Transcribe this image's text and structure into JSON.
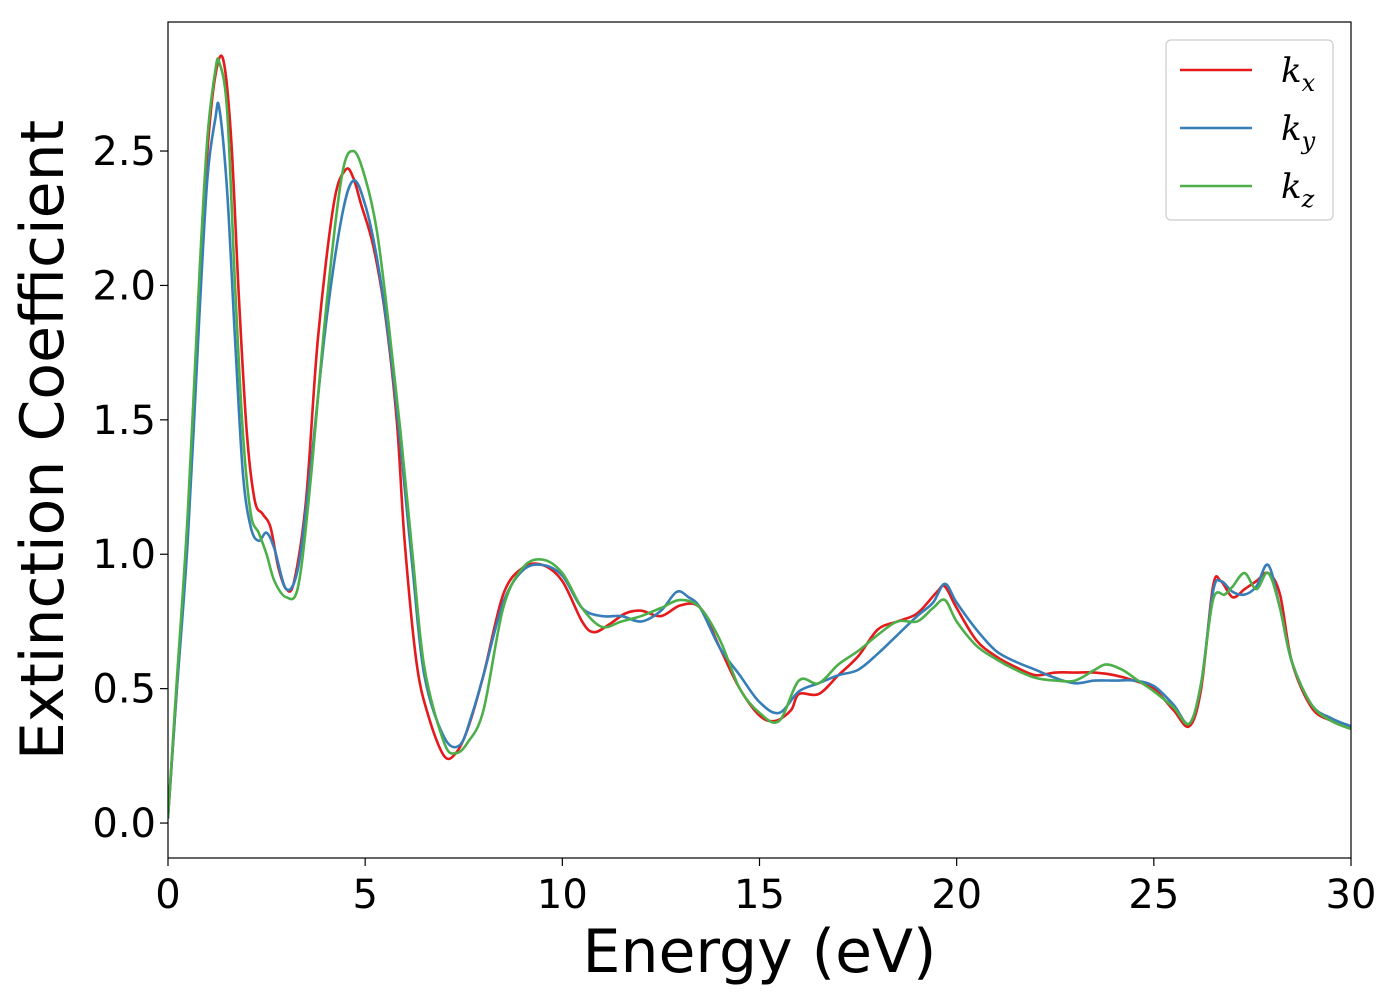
{
  "chart_data": {
    "type": "line",
    "xlabel": "Energy (eV)",
    "ylabel": "Extinction Coefficient",
    "xlim": [
      0,
      30
    ],
    "ylim": [
      -0.13,
      2.98
    ],
    "xticks": [
      0,
      5,
      10,
      15,
      20,
      25,
      30
    ],
    "xtick_labels": [
      "0",
      "5",
      "10",
      "15",
      "20",
      "25",
      "30"
    ],
    "yticks": [
      0.0,
      0.5,
      1.0,
      1.5,
      2.0,
      2.5
    ],
    "ytick_labels": [
      "0.0",
      "0.5",
      "1.0",
      "1.5",
      "2.0",
      "2.5"
    ],
    "grid": false,
    "legend_position": "top-right",
    "series": [
      {
        "name": "k_x",
        "label_base": "k",
        "label_sub": "x",
        "color": "#e41a1c",
        "x": [
          0,
          0.2,
          0.5,
          0.8,
          1.0,
          1.2,
          1.4,
          1.6,
          1.8,
          2.0,
          2.2,
          2.4,
          2.6,
          2.8,
          3.0,
          3.2,
          3.5,
          3.8,
          4.2,
          4.5,
          4.7,
          4.9,
          5.2,
          5.5,
          5.8,
          6.0,
          6.3,
          6.6,
          7.0,
          7.3,
          7.6,
          8.0,
          8.5,
          9.0,
          9.5,
          10.0,
          10.5,
          10.8,
          11.2,
          11.6,
          12.0,
          12.5,
          13.0,
          13.5,
          14.0,
          14.5,
          15.0,
          15.4,
          15.8,
          16.0,
          16.5,
          17.0,
          17.5,
          18.0,
          18.5,
          19.0,
          19.5,
          19.7,
          20.0,
          20.5,
          21.0,
          21.5,
          22.0,
          22.5,
          23.0,
          23.5,
          24.0,
          24.5,
          25.0,
          25.5,
          25.9,
          26.2,
          26.5,
          26.7,
          27.0,
          27.3,
          27.6,
          27.9,
          28.2,
          28.5,
          29.0,
          29.5,
          30.0
        ],
        "y": [
          0.02,
          0.45,
          1.1,
          2.0,
          2.5,
          2.78,
          2.84,
          2.55,
          1.95,
          1.45,
          1.2,
          1.15,
          1.1,
          0.95,
          0.87,
          0.9,
          1.2,
          1.8,
          2.3,
          2.43,
          2.4,
          2.3,
          2.15,
          1.9,
          1.5,
          1.05,
          0.6,
          0.4,
          0.25,
          0.26,
          0.35,
          0.55,
          0.85,
          0.95,
          0.96,
          0.9,
          0.75,
          0.71,
          0.74,
          0.78,
          0.79,
          0.77,
          0.81,
          0.8,
          0.65,
          0.5,
          0.4,
          0.38,
          0.42,
          0.48,
          0.48,
          0.55,
          0.62,
          0.72,
          0.75,
          0.78,
          0.86,
          0.88,
          0.8,
          0.68,
          0.62,
          0.58,
          0.55,
          0.56,
          0.56,
          0.56,
          0.55,
          0.53,
          0.5,
          0.42,
          0.36,
          0.5,
          0.88,
          0.9,
          0.84,
          0.87,
          0.9,
          0.93,
          0.85,
          0.6,
          0.43,
          0.38,
          0.35
        ]
      },
      {
        "name": "k_y",
        "label_base": "k",
        "label_sub": "y",
        "color": "#377eb8",
        "x": [
          0,
          0.2,
          0.5,
          0.8,
          1.0,
          1.2,
          1.3,
          1.5,
          1.7,
          1.9,
          2.1,
          2.3,
          2.5,
          2.7,
          3.0,
          3.3,
          3.6,
          4.0,
          4.4,
          4.7,
          5.0,
          5.3,
          5.6,
          5.9,
          6.2,
          6.5,
          7.0,
          7.4,
          7.7,
          8.0,
          8.5,
          9.0,
          9.5,
          10.0,
          10.5,
          11.0,
          11.5,
          12.0,
          12.5,
          12.9,
          13.2,
          13.5,
          14.0,
          14.5,
          15.0,
          15.5,
          16.0,
          16.5,
          17.0,
          17.5,
          18.0,
          18.5,
          19.0,
          19.4,
          19.7,
          20.0,
          20.5,
          21.0,
          21.5,
          22.0,
          22.5,
          23.0,
          23.5,
          24.0,
          24.5,
          25.0,
          25.5,
          25.9,
          26.2,
          26.5,
          26.7,
          27.0,
          27.3,
          27.6,
          27.9,
          28.2,
          28.5,
          29.0,
          29.5,
          30.0
        ],
        "y": [
          0.02,
          0.45,
          1.05,
          1.9,
          2.4,
          2.62,
          2.66,
          2.35,
          1.8,
          1.3,
          1.1,
          1.05,
          1.08,
          1.02,
          0.87,
          0.95,
          1.3,
          1.85,
          2.25,
          2.39,
          2.3,
          2.1,
          1.8,
          1.4,
          0.95,
          0.55,
          0.32,
          0.29,
          0.4,
          0.55,
          0.82,
          0.94,
          0.96,
          0.92,
          0.8,
          0.77,
          0.77,
          0.75,
          0.79,
          0.86,
          0.84,
          0.8,
          0.65,
          0.55,
          0.45,
          0.41,
          0.49,
          0.52,
          0.55,
          0.57,
          0.63,
          0.7,
          0.77,
          0.82,
          0.89,
          0.82,
          0.72,
          0.64,
          0.6,
          0.57,
          0.54,
          0.52,
          0.53,
          0.53,
          0.53,
          0.51,
          0.44,
          0.37,
          0.52,
          0.86,
          0.9,
          0.86,
          0.85,
          0.88,
          0.96,
          0.8,
          0.6,
          0.44,
          0.39,
          0.36
        ]
      },
      {
        "name": "k_z",
        "label_base": "k",
        "label_sub": "z",
        "color": "#4daf4a",
        "x": [
          0,
          0.2,
          0.5,
          0.8,
          1.0,
          1.2,
          1.3,
          1.5,
          1.7,
          1.9,
          2.1,
          2.3,
          2.5,
          2.7,
          3.0,
          3.3,
          3.6,
          4.0,
          4.4,
          4.7,
          5.0,
          5.3,
          5.6,
          5.9,
          6.2,
          6.5,
          7.0,
          7.3,
          7.6,
          8.0,
          8.5,
          9.0,
          9.5,
          10.0,
          10.5,
          11.0,
          11.5,
          12.0,
          12.5,
          13.0,
          13.5,
          14.0,
          14.5,
          15.0,
          15.5,
          16.0,
          16.5,
          17.0,
          17.5,
          18.0,
          18.5,
          19.0,
          19.4,
          19.7,
          20.0,
          20.5,
          21.0,
          21.5,
          22.0,
          22.5,
          23.0,
          23.5,
          23.8,
          24.2,
          24.6,
          25.0,
          25.5,
          25.9,
          26.2,
          26.5,
          26.8,
          27.0,
          27.3,
          27.6,
          27.9,
          28.2,
          28.5,
          29.0,
          29.5,
          30.0
        ],
        "y": [
          0.02,
          0.48,
          1.15,
          2.05,
          2.55,
          2.8,
          2.83,
          2.65,
          2.0,
          1.45,
          1.15,
          1.08,
          1.0,
          0.9,
          0.84,
          0.88,
          1.25,
          1.9,
          2.4,
          2.5,
          2.4,
          2.2,
          1.85,
          1.45,
          1.0,
          0.58,
          0.3,
          0.26,
          0.3,
          0.42,
          0.8,
          0.95,
          0.98,
          0.93,
          0.8,
          0.73,
          0.75,
          0.77,
          0.8,
          0.83,
          0.8,
          0.68,
          0.5,
          0.41,
          0.38,
          0.53,
          0.52,
          0.59,
          0.64,
          0.7,
          0.75,
          0.75,
          0.8,
          0.83,
          0.75,
          0.66,
          0.61,
          0.57,
          0.54,
          0.53,
          0.53,
          0.57,
          0.59,
          0.57,
          0.53,
          0.49,
          0.43,
          0.37,
          0.52,
          0.83,
          0.85,
          0.88,
          0.93,
          0.87,
          0.93,
          0.8,
          0.6,
          0.44,
          0.38,
          0.35
        ]
      }
    ]
  }
}
